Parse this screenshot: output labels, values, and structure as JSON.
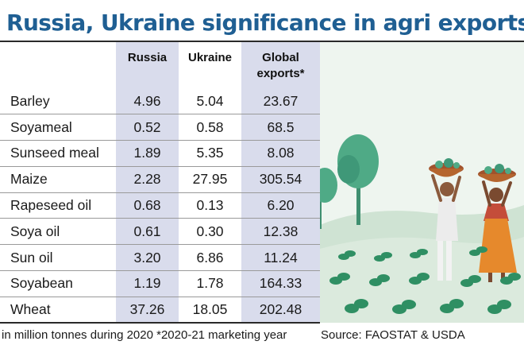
{
  "chart_data": {
    "type": "table",
    "title": "Russia, Ukraine significance in agri exports",
    "columns": [
      "",
      "Russia",
      "Ukraine",
      "Global exports*"
    ],
    "rows": [
      {
        "item": "Barley",
        "russia": "4.96",
        "ukraine": "5.04",
        "global": "23.67"
      },
      {
        "item": "Soyameal",
        "russia": "0.52",
        "ukraine": "0.58",
        "global": "68.5"
      },
      {
        "item": "Sunseed meal",
        "russia": "1.89",
        "ukraine": "5.35",
        "global": "8.08"
      },
      {
        "item": "Maize",
        "russia": "2.28",
        "ukraine": "27.95",
        "global": "305.54"
      },
      {
        "item": "Rapeseed oil",
        "russia": "0.68",
        "ukraine": "0.13",
        "global": "6.20"
      },
      {
        "item": "Soya oil",
        "russia": "0.61",
        "ukraine": "0.30",
        "global": "12.38"
      },
      {
        "item": "Sun oil",
        "russia": "3.20",
        "ukraine": "6.86",
        "global": "11.24"
      },
      {
        "item": "Soyabean",
        "russia": "1.19",
        "ukraine": "1.78",
        "global": "164.33"
      },
      {
        "item": "Wheat",
        "russia": "37.26",
        "ukraine": "18.05",
        "global": "202.48"
      }
    ],
    "note": "in million tonnes during 2020 *2020-21 marketing year",
    "source": "Source: FAOSTAT & USDA"
  },
  "colors": {
    "title": "#1f5f93",
    "column_shade": "#d9dcec",
    "field": "#dbeadd",
    "sky": "#eef5ef"
  },
  "illustration": {
    "icons": [
      "tree-icon",
      "farmer-with-basket-icon",
      "woman-with-basket-icon",
      "crop-plant-icon"
    ]
  }
}
